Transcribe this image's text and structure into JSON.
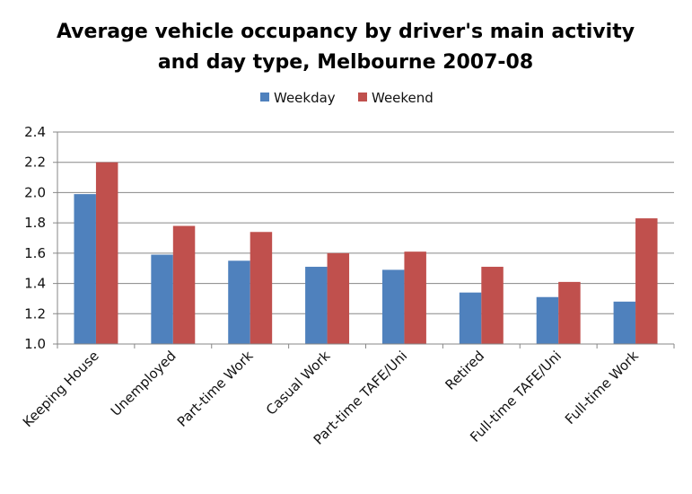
{
  "chart_data": {
    "type": "bar",
    "title": [
      "Average vehicle occupancy by driver's main activity",
      "and day type, Melbourne 2007-08"
    ],
    "xlabel": "",
    "ylabel": "",
    "categories": [
      "Keeping House",
      "Unemployed",
      "Part-time Work",
      "Casual Work",
      "Part-time TAFE/Uni",
      "Retired",
      "Full-time TAFE/Uni",
      "Full-time Work"
    ],
    "series": [
      {
        "name": "Weekday",
        "color": "#4F81BD",
        "values": [
          1.99,
          1.59,
          1.55,
          1.51,
          1.49,
          1.34,
          1.31,
          1.28
        ]
      },
      {
        "name": "Weekend",
        "color": "#C0504D",
        "values": [
          2.2,
          1.78,
          1.74,
          1.6,
          1.61,
          1.51,
          1.41,
          1.83
        ]
      }
    ],
    "ylim": [
      1.0,
      2.4
    ],
    "yticks": [
      "1.0",
      "1.2",
      "1.4",
      "1.6",
      "1.8",
      "2.0",
      "2.2",
      "2.4"
    ],
    "grid": true,
    "legend_position": "top-center",
    "gridline_color": "#878787"
  }
}
